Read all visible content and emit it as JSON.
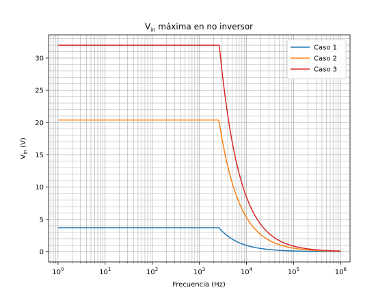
{
  "chart_data": {
    "type": "line",
    "title": "V",
    "title_sub": "in",
    "title_rest": " máxima en no inversor",
    "xlabel": "Frecuencia (Hz)",
    "ylabel": "V",
    "ylabel_sub": "in",
    "ylabel_rest": " (V)",
    "x_scale": "log",
    "xlim": [
      0.63,
      1580000.0
    ],
    "ylim": [
      -1.6,
      33.6
    ],
    "x_ticks": [
      {
        "base": "10",
        "exp": "0",
        "value": 1
      },
      {
        "base": "10",
        "exp": "1",
        "value": 10
      },
      {
        "base": "10",
        "exp": "2",
        "value": 100
      },
      {
        "base": "10",
        "exp": "3",
        "value": 1000
      },
      {
        "base": "10",
        "exp": "4",
        "value": 10000
      },
      {
        "base": "10",
        "exp": "5",
        "value": 100000
      },
      {
        "base": "10",
        "exp": "6",
        "value": 1000000
      }
    ],
    "y_ticks": [
      "0",
      "5",
      "10",
      "15",
      "20",
      "25",
      "30"
    ],
    "grid": "both major and minor",
    "legend_position": "top-right",
    "series": [
      {
        "name": "Caso 1",
        "color": "#1f77b4",
        "plateau": 3.7,
        "corner_hz": 2600,
        "x_range": [
          1,
          1000000
        ]
      },
      {
        "name": "Caso 2",
        "color": "#ff7f0e",
        "plateau": 20.4,
        "corner_hz": 2600,
        "x_range": [
          1,
          1000000
        ]
      },
      {
        "name": "Caso 3",
        "color": "#d62728",
        "plateau": 32.0,
        "corner_hz": 2650,
        "x_range": [
          1,
          1000000
        ]
      }
    ]
  }
}
